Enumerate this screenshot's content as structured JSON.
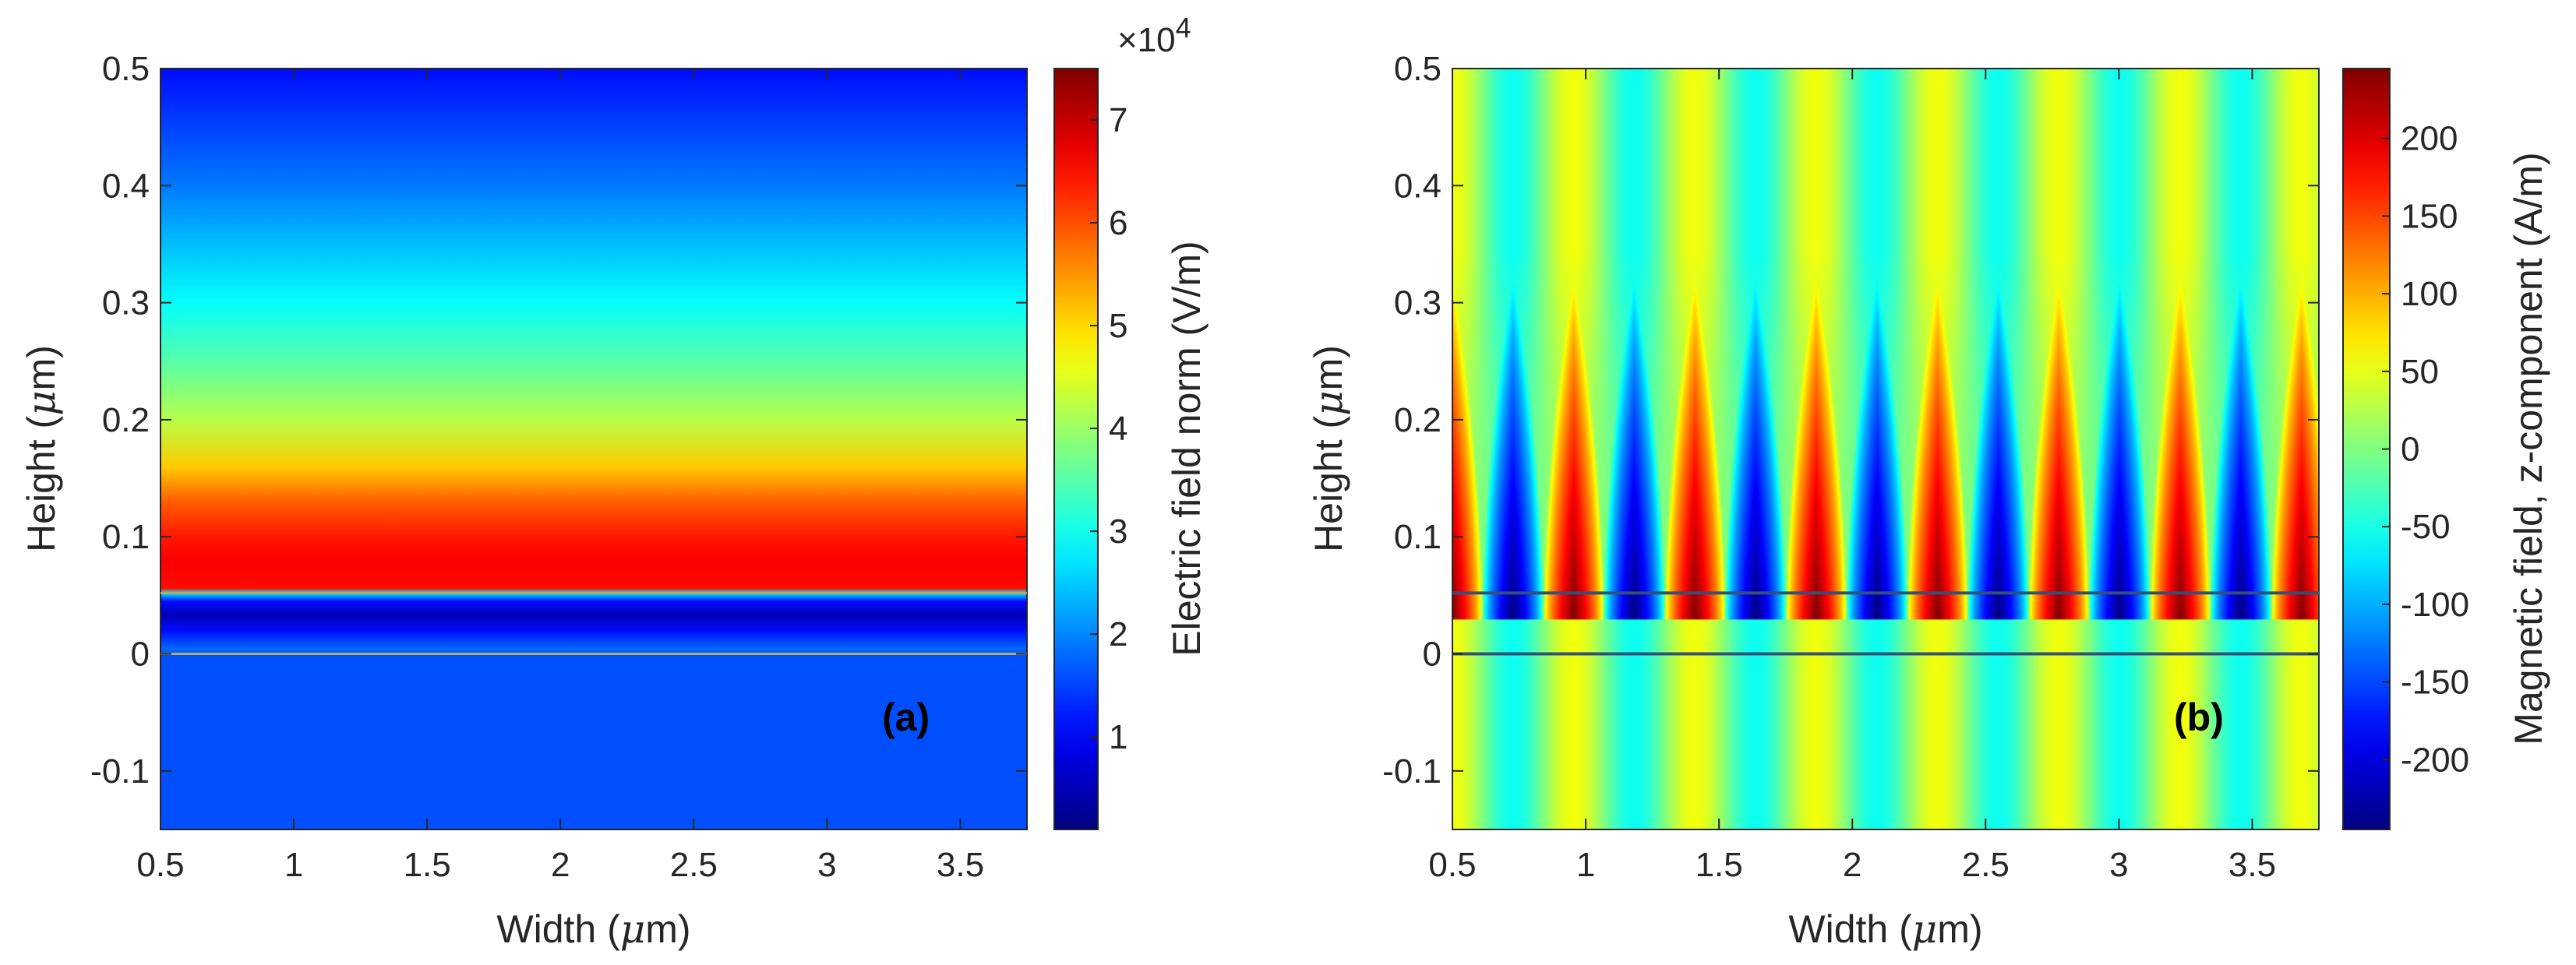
{
  "chart_data": [
    {
      "type": "heatmap",
      "panel_tag": "(a)",
      "xlabel_pre": "Width (",
      "xlabel_mu": "μ",
      "xlabel_post": "m)",
      "ylabel_pre": "Height (",
      "ylabel_mu": "μ",
      "ylabel_post": "m)",
      "xlim": [
        0.5,
        3.75
      ],
      "ylim": [
        -0.15,
        0.5
      ],
      "xticks": [
        {
          "v": 0.5,
          "t": "0.5"
        },
        {
          "v": 1,
          "t": "1"
        },
        {
          "v": 1.5,
          "t": "1.5"
        },
        {
          "v": 2,
          "t": "2"
        },
        {
          "v": 2.5,
          "t": "2.5"
        },
        {
          "v": 3,
          "t": "3"
        },
        {
          "v": 3.5,
          "t": "3.5"
        }
      ],
      "yticks": [
        {
          "v": -0.1,
          "t": "-0.1"
        },
        {
          "v": 0,
          "t": "0"
        },
        {
          "v": 0.1,
          "t": "0.1"
        },
        {
          "v": 0.2,
          "t": "0.2"
        },
        {
          "v": 0.3,
          "t": "0.3"
        },
        {
          "v": 0.4,
          "t": "0.4"
        },
        {
          "v": 0.5,
          "t": "0.5"
        }
      ],
      "colorbar": {
        "label": "Electric field norm (V/m)",
        "multiplier_base": "×10",
        "multiplier_exp": "4",
        "range": [
          0.1,
          7.5
        ],
        "ticks": [
          {
            "v": 1,
            "t": "1"
          },
          {
            "v": 2,
            "t": "2"
          },
          {
            "v": 3,
            "t": "3"
          },
          {
            "v": 4,
            "t": "4"
          },
          {
            "v": 5,
            "t": "5"
          },
          {
            "v": 6,
            "t": "6"
          },
          {
            "v": 7,
            "t": "7"
          }
        ]
      },
      "field_profile": {
        "axis": "height",
        "heights": [
          -0.15,
          0.0,
          0.004,
          0.02,
          0.033,
          0.045,
          0.052,
          0.056,
          0.08,
          0.1,
          0.13,
          0.16,
          0.2,
          0.25,
          0.3,
          0.35,
          0.4,
          0.45,
          0.5
        ],
        "values": [
          1.6,
          1.6,
          1.8,
          1.1,
          0.5,
          1.1,
          2.8,
          6.5,
          6.6,
          6.4,
          5.9,
          5.1,
          4.2,
          3.5,
          2.9,
          2.4,
          1.9,
          1.5,
          1.1
        ]
      },
      "interface_heights": [
        0,
        0.052
      ]
    },
    {
      "type": "heatmap",
      "panel_tag": "(b)",
      "xlabel_pre": "Width (",
      "xlabel_mu": "μ",
      "xlabel_post": "m)",
      "ylabel_pre": "Height (",
      "ylabel_mu": "μ",
      "ylabel_post": "m)",
      "xlim": [
        0.5,
        3.75
      ],
      "ylim": [
        -0.15,
        0.5
      ],
      "xticks": [
        {
          "v": 0.5,
          "t": "0.5"
        },
        {
          "v": 1,
          "t": "1"
        },
        {
          "v": 1.5,
          "t": "1.5"
        },
        {
          "v": 2,
          "t": "2"
        },
        {
          "v": 2.5,
          "t": "2.5"
        },
        {
          "v": 3,
          "t": "3"
        },
        {
          "v": 3.5,
          "t": "3.5"
        }
      ],
      "yticks": [
        {
          "v": -0.1,
          "t": "-0.1"
        },
        {
          "v": 0,
          "t": "0"
        },
        {
          "v": 0.1,
          "t": "0.1"
        },
        {
          "v": 0.2,
          "t": "0.2"
        },
        {
          "v": 0.3,
          "t": "0.3"
        },
        {
          "v": 0.4,
          "t": "0.4"
        },
        {
          "v": 0.5,
          "t": "0.5"
        }
      ],
      "colorbar": {
        "label": "Magnetic field, z-component (A/m)",
        "range": [
          -245,
          245
        ],
        "ticks": [
          {
            "v": -200,
            "t": "-200"
          },
          {
            "v": -150,
            "t": "-150"
          },
          {
            "v": -100,
            "t": "-100"
          },
          {
            "v": -50,
            "t": "-50"
          },
          {
            "v": 0,
            "t": "0"
          },
          {
            "v": 50,
            "t": "50"
          },
          {
            "v": 100,
            "t": "100"
          },
          {
            "v": 150,
            "t": "150"
          },
          {
            "v": 200,
            "t": "200"
          }
        ]
      },
      "wave_pattern": {
        "period_um": 0.455,
        "positive_peak_widths_um": [
          0.5,
          0.95,
          1.4,
          1.85,
          2.3,
          2.75,
          3.2,
          3.65
        ],
        "negative_peak_widths_um": [
          0.73,
          1.18,
          1.63,
          2.08,
          2.53,
          2.98,
          3.43
        ],
        "peak_amplitude": 245,
        "background_amplitude": 55,
        "lobe_top_height_um": 0.345,
        "lobe_bottom_height_um": 0.03
      },
      "interface_heights": [
        0,
        0.052
      ]
    }
  ]
}
